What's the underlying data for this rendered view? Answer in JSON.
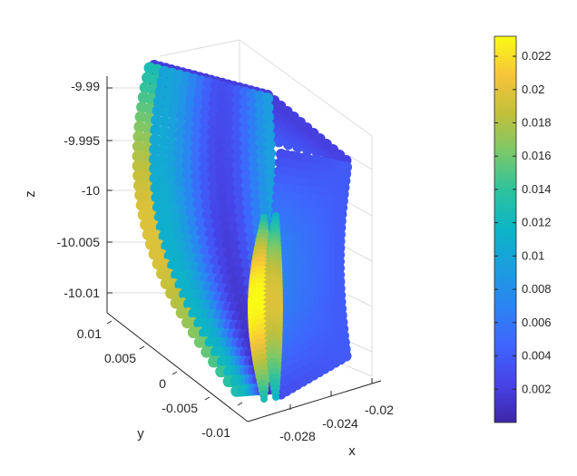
{
  "chart_data": {
    "type": "scatter",
    "subtype": "3d-scatter-colored",
    "title": "",
    "xlabel": "x",
    "ylabel": "y",
    "zlabel": "z",
    "x_ticks": [
      "-0.028",
      "-0.024",
      "-0.02"
    ],
    "y_ticks": [
      "0.01",
      "0.005",
      "0",
      "-0.005",
      "-0.01"
    ],
    "z_ticks": [
      "-9.99",
      "-9.995",
      "-10",
      "-10.005",
      "-10.01"
    ],
    "xlim": [
      -0.03,
      -0.019
    ],
    "ylim": [
      -0.011,
      0.011
    ],
    "zlim": [
      -10.012,
      -9.988
    ],
    "colorbar": {
      "colormap": "parula",
      "range": [
        0,
        0.0232
      ],
      "ticks": [
        "0.022",
        "0.02",
        "0.018",
        "0.016",
        "0.014",
        "0.012",
        "0.01",
        "0.008",
        "0.006",
        "0.004",
        "0.002"
      ]
    },
    "grid": true,
    "legend": "none"
  }
}
